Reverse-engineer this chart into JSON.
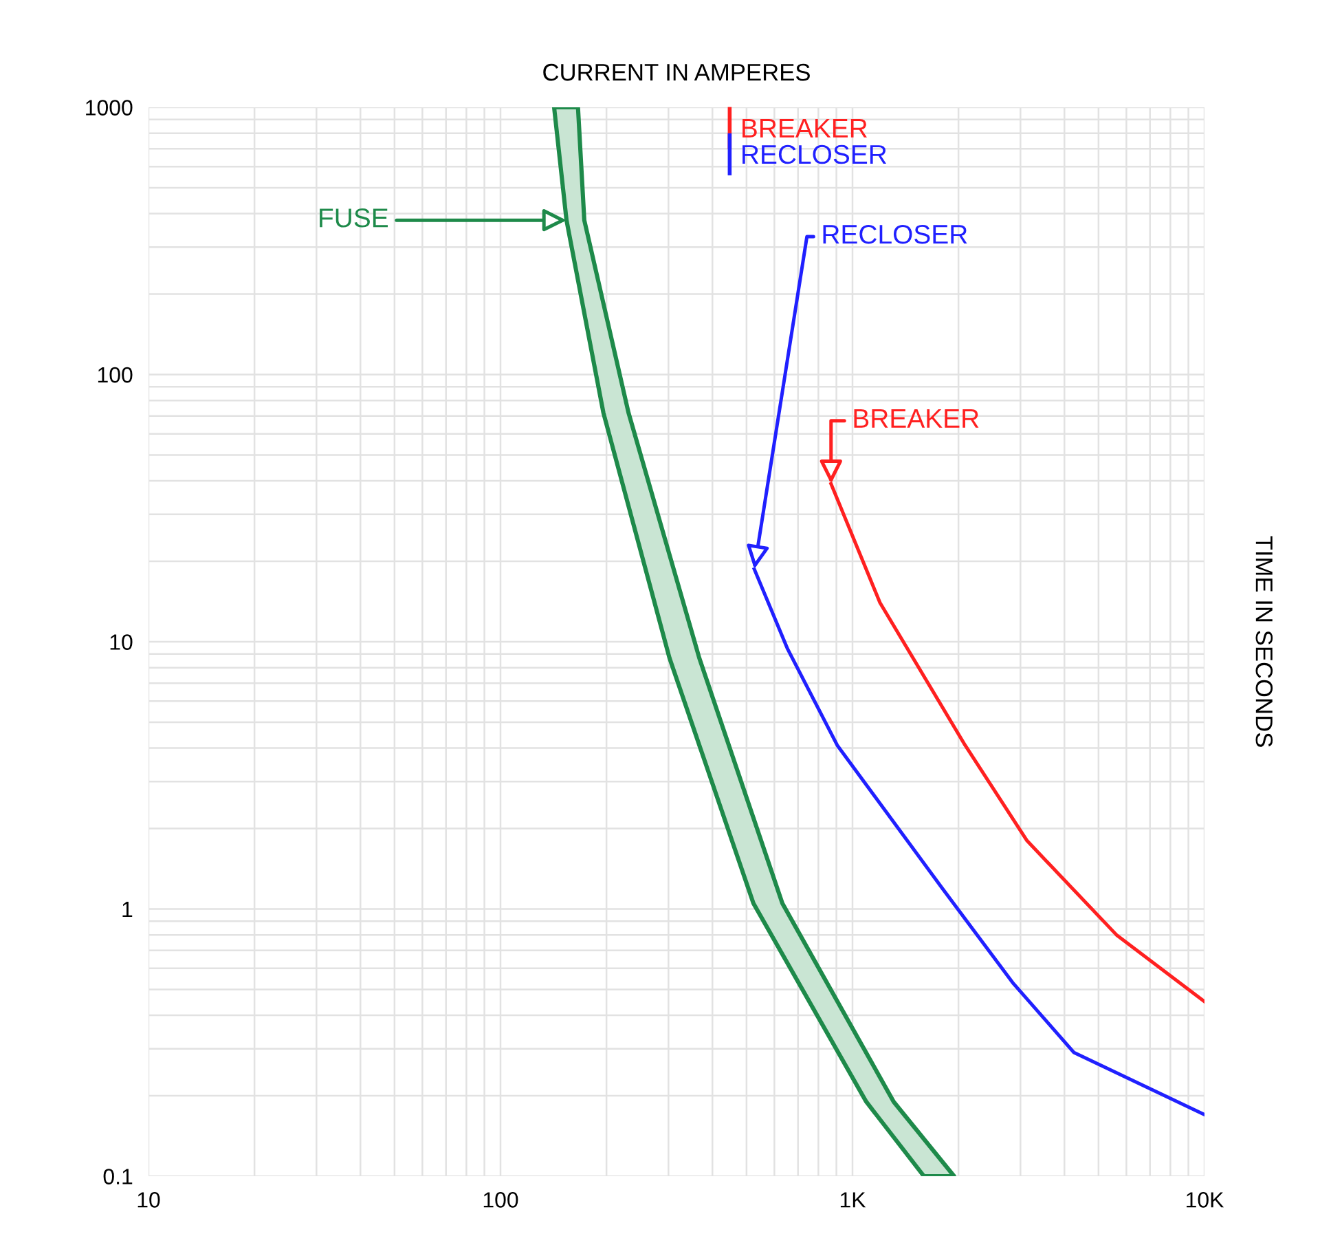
{
  "chart_data": {
    "type": "line",
    "xlabel": "CURRENT IN AMPERES",
    "ylabel": "TIME IN SECONDS",
    "log": "xy",
    "grid": true,
    "legend": "top",
    "marker": "none",
    "line_style": "solid",
    "xlim": [
      10,
      10000
    ],
    "xticks": [
      10,
      100,
      {
        "value": 1000,
        "label": "1K"
      },
      {
        "value": 10000,
        "label": "10K"
      }
    ],
    "ylim": [
      0.1,
      1000
    ],
    "yticks": [
      0.1,
      1,
      10,
      100,
      1000
    ],
    "series": [
      {
        "type": "area",
        "color": "#1e8a4a",
        "x": [
          142,
          154,
          196,
          302,
          523,
          1094,
          1596,
          1944,
          1309,
          632,
          367,
          231,
          173,
          166
        ],
        "values": [
          1000,
          378,
          72,
          8.7,
          1.05,
          0.19,
          0.1,
          0.1,
          0.19,
          1.05,
          8.7,
          72,
          378,
          1000
        ]
      },
      {
        "name": "RECLOSER",
        "color": "#2020ff",
        "x": [
          526,
          654,
          905,
          1795,
          2851,
          4260,
          10000
        ],
        "values": [
          18.7,
          9.4,
          4.1,
          1.2,
          0.53,
          0.29,
          0.17
        ]
      },
      {
        "name": "BREAKER",
        "color": "#ff2020",
        "x": [
          869,
          1197,
          2089,
          3133,
          5623,
          10000
        ],
        "values": [
          39,
          14,
          4.1,
          1.8,
          0.8,
          0.45
        ]
      }
    ],
    "annotations": [
      {
        "text": "FUSE",
        "x": 154,
        "y": 378
      },
      {
        "text": "RECLOSER",
        "x": 526,
        "y": 18.7
      },
      {
        "text": "BREAKER",
        "x": 869,
        "y": 39
      }
    ]
  }
}
